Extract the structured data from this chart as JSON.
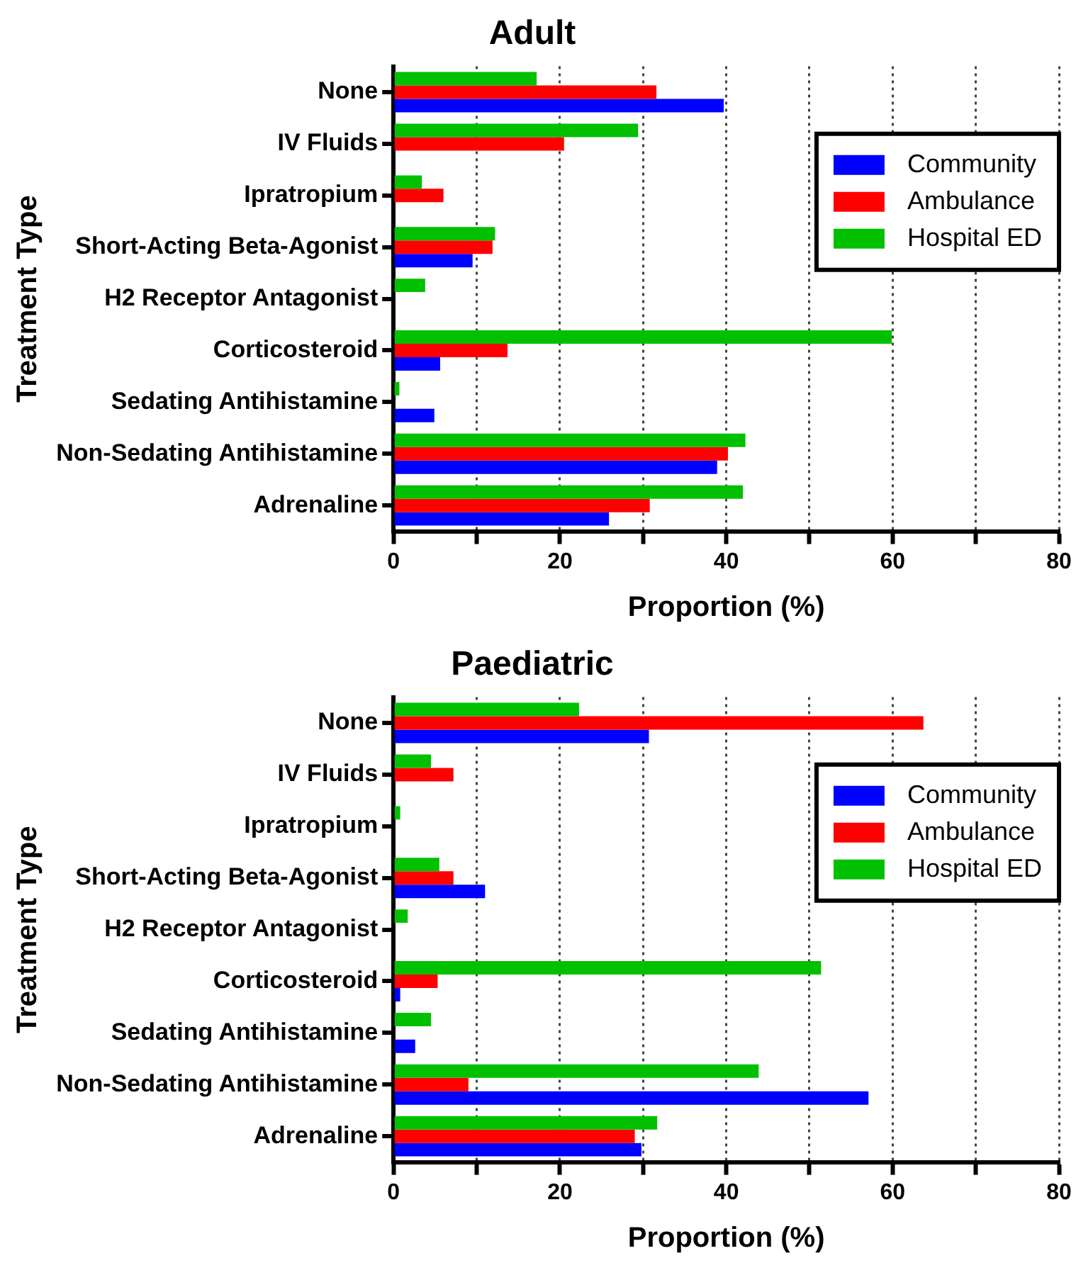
{
  "chart_data": [
    {
      "type": "bar",
      "orientation": "horizontal",
      "title": "Adult",
      "xlabel": "Proportion (%)",
      "ylabel": "Treatment Type",
      "categories": [
        "None",
        "IV Fluids",
        "Ipratropium",
        "Short-Acting Beta-Agonist",
        "H2 Receptor Antagonist",
        "Corticosteroid",
        "Sedating Antihistamine",
        "Non-Sedating Antihistamine",
        "Adrenaline"
      ],
      "series": [
        {
          "name": "Community",
          "color": "#0000ff",
          "values": [
            39.7,
            0,
            0,
            9.5,
            0,
            5.6,
            4.9,
            38.9,
            25.9
          ]
        },
        {
          "name": "Ambulance",
          "color": "#ff0000",
          "values": [
            31.6,
            20.5,
            6.0,
            11.9,
            0,
            13.7,
            0,
            40.2,
            30.8
          ]
        },
        {
          "name": "Hospital ED",
          "color": "#00c000",
          "values": [
            17.2,
            29.4,
            3.4,
            12.2,
            3.8,
            59.9,
            0.7,
            42.3,
            42.0
          ]
        }
      ],
      "xlim": [
        0,
        80
      ],
      "xticks": [
        0,
        {
          "value": 10,
          "label": null
        },
        20,
        {
          "value": 30,
          "label": null
        },
        40,
        {
          "value": 50,
          "label": null
        },
        60,
        {
          "value": 70,
          "label": null
        },
        80
      ],
      "grid": "x",
      "legend": "top right"
    },
    {
      "type": "bar",
      "orientation": "horizontal",
      "title": "Paediatric",
      "xlabel": "Proportion (%)",
      "ylabel": "Treatment Type",
      "categories": [
        "None",
        "IV Fluids",
        "Ipratropium",
        "Short-Acting Beta-Agonist",
        "H2 Receptor Antagonist",
        "Corticosteroid",
        "Sedating Antihistamine",
        "Non-Sedating Antihistamine",
        "Adrenaline"
      ],
      "series": [
        {
          "name": "Community",
          "color": "#0000ff",
          "values": [
            30.7,
            0,
            0,
            11.0,
            0,
            0.8,
            2.6,
            57.1,
            29.8
          ]
        },
        {
          "name": "Ambulance",
          "color": "#ff0000",
          "values": [
            63.7,
            7.2,
            0,
            7.2,
            0,
            5.3,
            0,
            9.0,
            29.0
          ]
        },
        {
          "name": "Hospital ED",
          "color": "#00c000",
          "values": [
            22.3,
            4.5,
            0.8,
            5.5,
            1.7,
            51.4,
            4.5,
            43.9,
            31.7
          ]
        }
      ],
      "xlim": [
        0,
        80
      ],
      "xticks": [
        0,
        {
          "value": 10,
          "label": null
        },
        20,
        {
          "value": 30,
          "label": null
        },
        40,
        {
          "value": 50,
          "label": null
        },
        60,
        {
          "value": 70,
          "label": null
        },
        80
      ],
      "grid": "x",
      "legend": "top right"
    }
  ]
}
